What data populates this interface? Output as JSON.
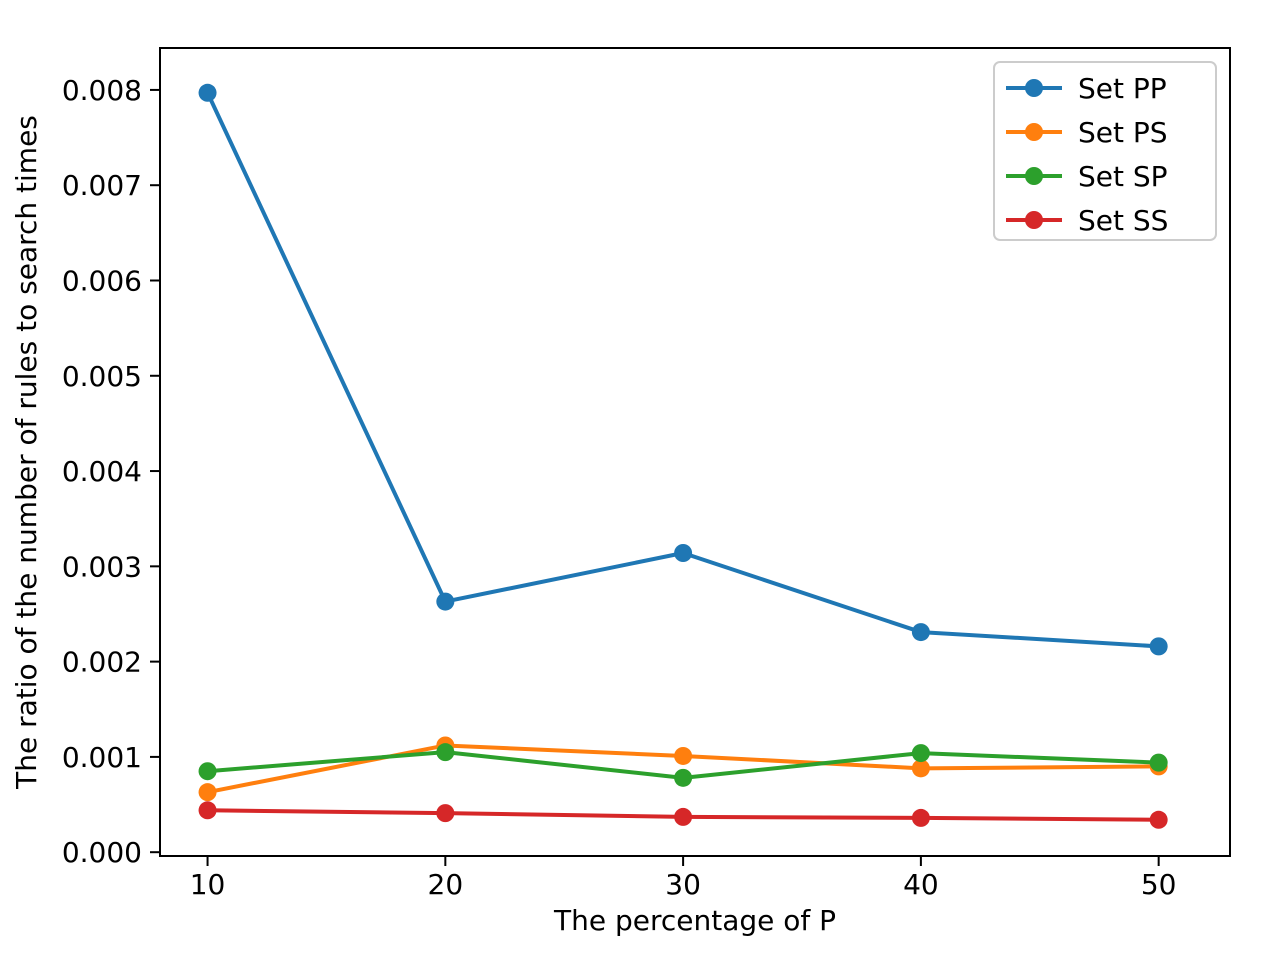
{
  "chart_data": {
    "type": "line",
    "title": "",
    "xlabel": "The percentage of P",
    "ylabel": "The ratio of the number of rules to search times",
    "x": [
      10,
      20,
      30,
      40,
      50
    ],
    "series": [
      {
        "name": "Set PP",
        "color": "#1f77b4",
        "values": [
          0.00797,
          0.00263,
          0.00314,
          0.00231,
          0.00216
        ]
      },
      {
        "name": "Set PS",
        "color": "#ff7f0e",
        "values": [
          0.00063,
          0.00112,
          0.00101,
          0.00088,
          0.0009
        ]
      },
      {
        "name": "Set SP",
        "color": "#2ca02c",
        "values": [
          0.00085,
          0.00105,
          0.00078,
          0.00104,
          0.00094
        ]
      },
      {
        "name": "Set SS",
        "color": "#d62728",
        "values": [
          0.00044,
          0.00041,
          0.00037,
          0.00036,
          0.00034
        ]
      }
    ],
    "xticks": [
      10,
      20,
      30,
      40,
      50
    ],
    "xtick_labels": [
      "10",
      "20",
      "30",
      "40",
      "50"
    ],
    "yticks": [
      0.0,
      0.001,
      0.002,
      0.003,
      0.004,
      0.005,
      0.006,
      0.007,
      0.008
    ],
    "ytick_labels": [
      "0.000",
      "0.001",
      "0.002",
      "0.003",
      "0.004",
      "0.005",
      "0.006",
      "0.007",
      "0.008"
    ],
    "xlim": [
      8,
      53
    ],
    "ylim": [
      -4e-05,
      0.00844
    ],
    "grid": false,
    "marker": "circle",
    "legend": {
      "position": "upper-right",
      "entries": [
        "Set PP",
        "Set PS",
        "Set SP",
        "Set SS"
      ]
    },
    "style": {
      "spine_color": "#000000",
      "legend_border_color": "#cccccc",
      "background": "#ffffff"
    }
  }
}
